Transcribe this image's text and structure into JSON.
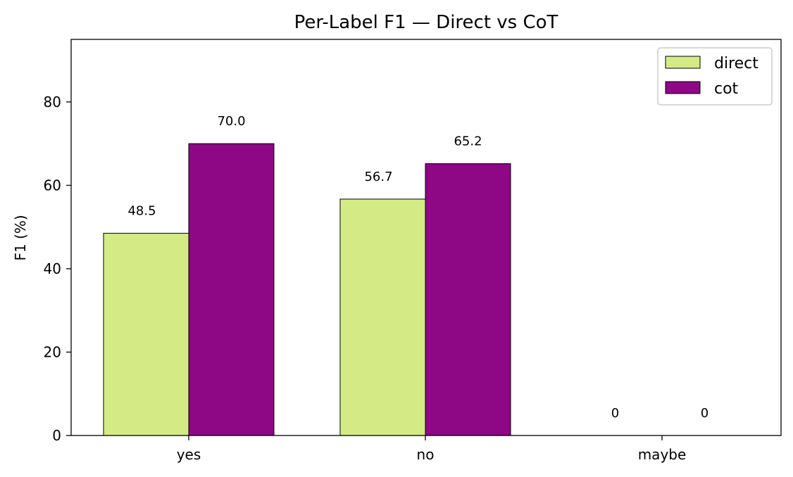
{
  "chart_data": {
    "type": "bar",
    "title": "Per-Label F1 — Direct vs CoT",
    "xlabel": "",
    "ylabel": "F1 (%)",
    "categories": [
      "yes",
      "no",
      "maybe"
    ],
    "ylim": [
      0,
      95
    ],
    "yticks": [
      0,
      20,
      40,
      60,
      80
    ],
    "grid": false,
    "legend_position": "top-right",
    "series": [
      {
        "name": "direct",
        "color": "#d4ea84",
        "values": [
          48.5,
          56.7,
          0
        ],
        "value_labels": [
          "48.5",
          "56.7",
          "0"
        ]
      },
      {
        "name": "cot",
        "color": "#8e0785",
        "values": [
          70.0,
          65.2,
          0
        ],
        "value_labels": [
          "70.0",
          "65.2",
          "0"
        ]
      }
    ]
  }
}
